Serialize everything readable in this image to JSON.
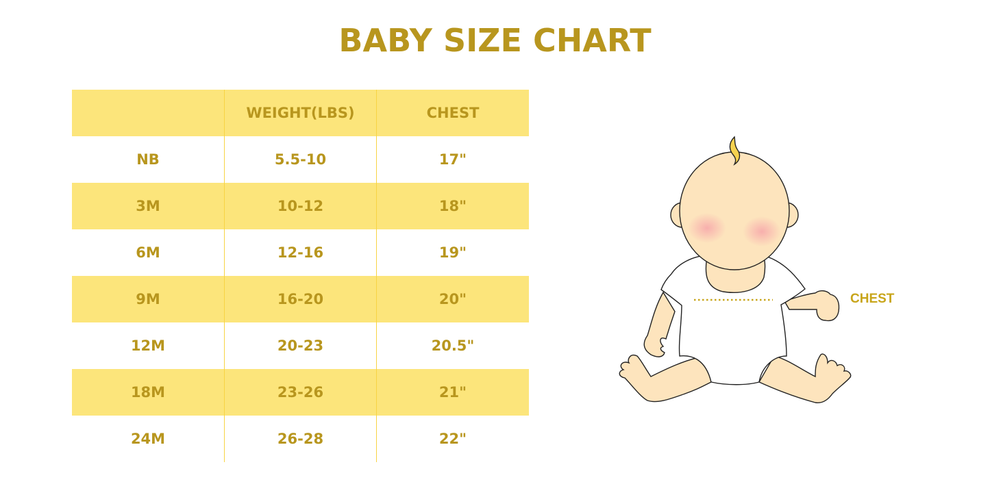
{
  "title": "BABY SIZE CHART",
  "table": {
    "headers": [
      "",
      "WEIGHT(LBS)",
      "CHEST"
    ],
    "rows": [
      [
        "NB",
        "5.5-10",
        "17\""
      ],
      [
        "3M",
        "10-12",
        "18\""
      ],
      [
        "6M",
        "12-16",
        "19\""
      ],
      [
        "9M",
        "16-20",
        "20\""
      ],
      [
        "12M",
        "20-23",
        "20.5\""
      ],
      [
        "18M",
        "23-26",
        "21\""
      ],
      [
        "24M",
        "26-28",
        "22\""
      ]
    ]
  },
  "illustration": {
    "chest_label": "CHEST"
  },
  "colors": {
    "text": "#b8961e",
    "band": "#fce57b",
    "divider": "#f7d343",
    "skin": "#fde4bd"
  }
}
